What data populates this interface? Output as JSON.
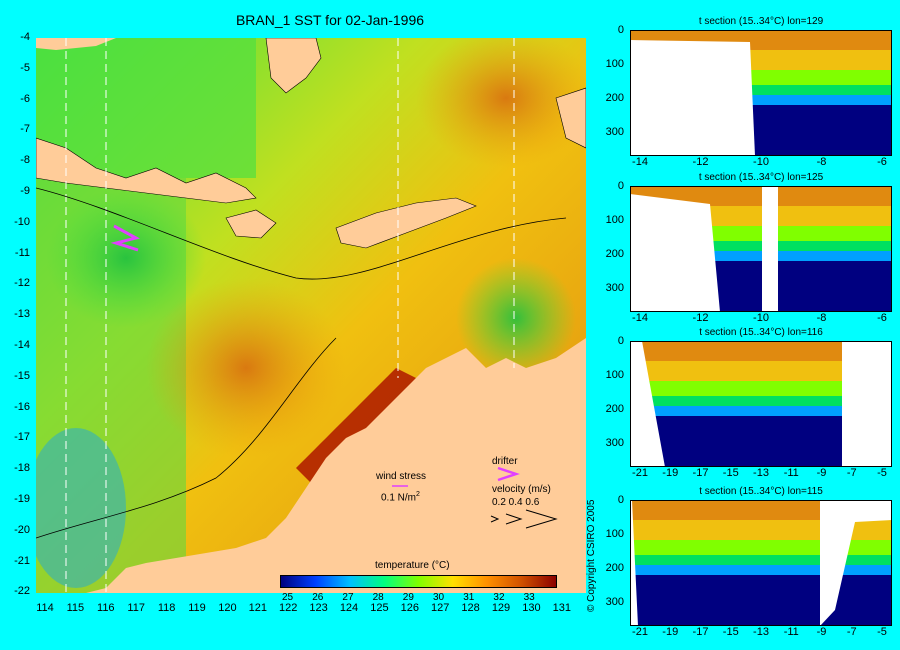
{
  "title": "BRAN_1 SST for 02-Jan-1996",
  "main_map": {
    "y_ticks": [
      "-4",
      "-5",
      "-6",
      "-7",
      "-8",
      "-9",
      "-10",
      "-11",
      "-12",
      "-13",
      "-14",
      "-15",
      "-16",
      "-17",
      "-18",
      "-19",
      "-20",
      "-21",
      "-22"
    ],
    "x_ticks": [
      "114",
      "115",
      "116",
      "117",
      "118",
      "119",
      "120",
      "121",
      "122",
      "123",
      "124",
      "125",
      "126",
      "127",
      "128",
      "129",
      "130",
      "131"
    ],
    "wind_stress_label": "wind stress",
    "wind_stress_value": "0.1 N/m",
    "wind_stress_exp": "2",
    "drifter_label": "drifter",
    "velocity_label": "velocity (m/s)",
    "velocity_scale": "0.2 0.4 0.6",
    "drifter_color": "#e040ff"
  },
  "colorbar": {
    "title": "temperature (°C)",
    "ticks": [
      "25",
      "26",
      "27",
      "28",
      "29",
      "30",
      "31",
      "32",
      "33"
    ],
    "colors": [
      "#00007f",
      "#0040ff",
      "#00c0ff",
      "#00ff80",
      "#80ff00",
      "#ffe000",
      "#ff9000",
      "#d05000",
      "#8b0000"
    ]
  },
  "sections": [
    {
      "title": "t section (15..34°C) lon=129",
      "y_ticks": [
        "0",
        "100",
        "200",
        "300"
      ],
      "x_ticks": [
        "-14",
        "-12",
        "-10",
        "-8",
        "-6"
      ]
    },
    {
      "title": "t section (15..34°C) lon=125",
      "y_ticks": [
        "0",
        "100",
        "200",
        "300"
      ],
      "x_ticks": [
        "-14",
        "-12",
        "-10",
        "-8",
        "-6"
      ]
    },
    {
      "title": "t section (15..34°C) lon=116",
      "y_ticks": [
        "0",
        "100",
        "200",
        "300"
      ],
      "x_ticks": [
        "-21",
        "-19",
        "-17",
        "-15",
        "-13",
        "-11",
        "-9",
        "-7",
        "-5"
      ]
    },
    {
      "title": "t section (15..34°C) lon=115",
      "y_ticks": [
        "0",
        "100",
        "200",
        "300"
      ],
      "x_ticks": [
        "-21",
        "-19",
        "-17",
        "-15",
        "-13",
        "-11",
        "-9",
        "-7",
        "-5"
      ]
    }
  ],
  "copyright": "© Copyright CSIRO 2005",
  "colors": {
    "land": "#ffcc99",
    "background": "#00ffff",
    "deep": "#000080"
  }
}
